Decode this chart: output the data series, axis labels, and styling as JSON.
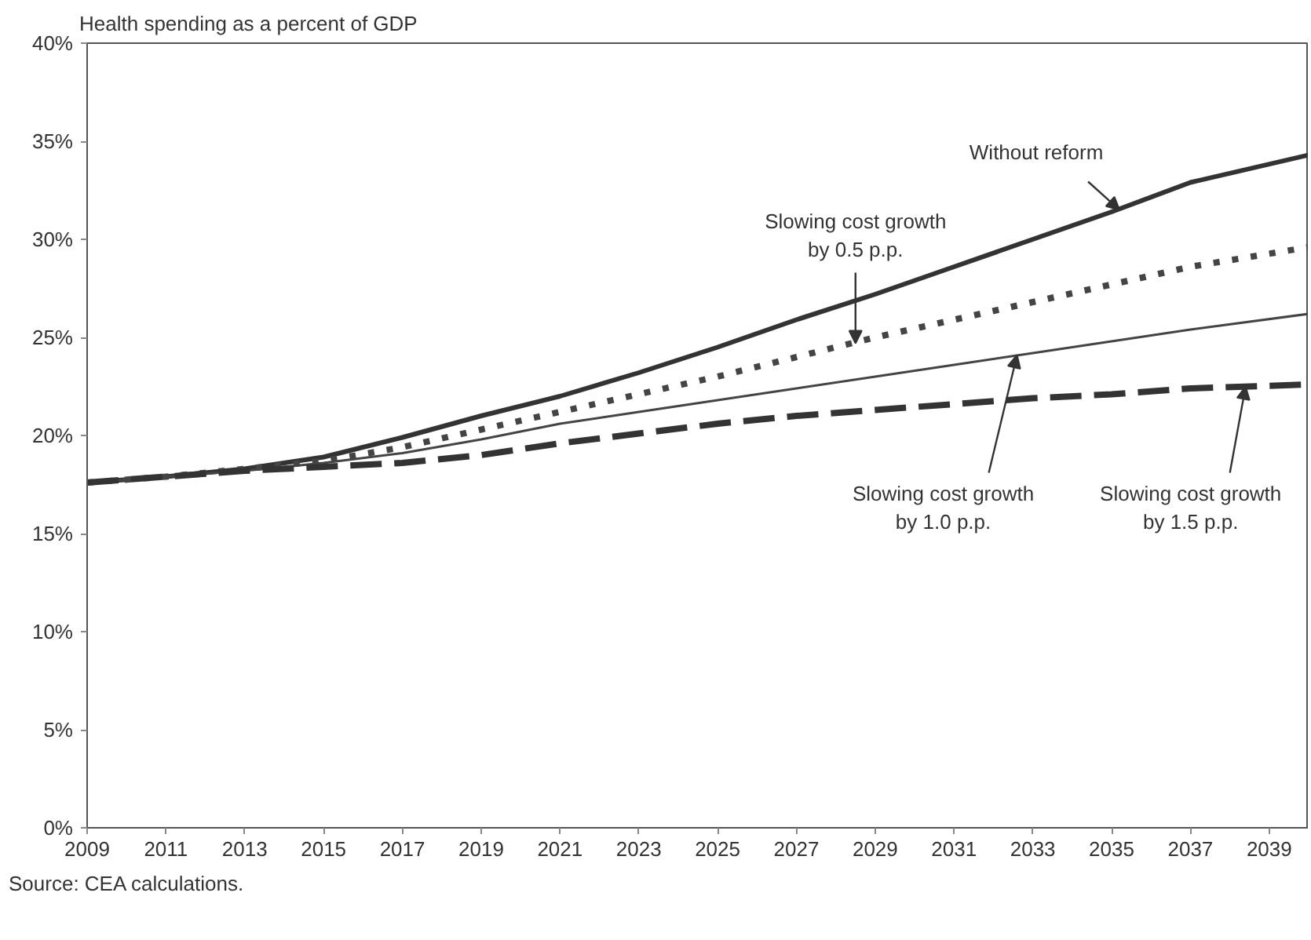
{
  "chart_data": {
    "type": "line",
    "ylabel": "Health spending as a percent of GDP",
    "x": [
      2009,
      2011,
      2013,
      2015,
      2017,
      2019,
      2021,
      2023,
      2025,
      2027,
      2029,
      2031,
      2033,
      2035,
      2037,
      2040
    ],
    "series": [
      {
        "color": "#333333",
        "line_style": "solid",
        "values": [
          17.6,
          17.9,
          18.3,
          18.9,
          19.9,
          21.0,
          22.0,
          23.2,
          24.5,
          25.9,
          27.2,
          28.6,
          30.0,
          31.4,
          32.9,
          34.3
        ]
      },
      {
        "color": "#444444",
        "line_style": "dotted",
        "values": [
          17.6,
          17.9,
          18.3,
          18.7,
          19.4,
          20.3,
          21.2,
          22.1,
          23.0,
          24.0,
          25.0,
          25.9,
          26.8,
          27.7,
          28.6,
          29.6
        ]
      },
      {
        "color": "#444444",
        "line_style": "solid",
        "values": [
          17.6,
          17.9,
          18.2,
          18.6,
          19.1,
          19.8,
          20.6,
          21.2,
          21.8,
          22.4,
          23.0,
          23.6,
          24.2,
          24.8,
          25.4,
          26.2
        ]
      },
      {
        "color": "#333333",
        "line_style": "dashed",
        "values": [
          17.6,
          17.9,
          18.2,
          18.4,
          18.6,
          19.0,
          19.6,
          20.1,
          20.6,
          21.0,
          21.3,
          21.6,
          21.9,
          22.1,
          22.4,
          22.6
        ]
      }
    ],
    "xlim": [
      2009,
      2040
    ],
    "ylim": [
      0,
      40
    ],
    "xticks": [
      2009,
      2011,
      2013,
      2015,
      2017,
      2019,
      2021,
      2023,
      2025,
      2027,
      2029,
      2031,
      2033,
      2035,
      2037,
      2039
    ],
    "yticks": [
      {
        "value": 0,
        "label": "0%"
      },
      {
        "value": 5,
        "label": "5%"
      },
      {
        "value": 10,
        "label": "10%"
      },
      {
        "value": 15,
        "label": "15%"
      },
      {
        "value": 20,
        "label": "20%"
      },
      {
        "value": 25,
        "label": "25%"
      },
      {
        "value": 30,
        "label": "30%"
      },
      {
        "value": 35,
        "label": "35%"
      },
      {
        "value": 40,
        "label": "40%"
      }
    ],
    "grid": false,
    "annotations": [
      {
        "text": "Without reform",
        "x": 2035.2,
        "y": 31.5
      },
      {
        "text": "Slowing cost growth\nby 0.5 p.p.",
        "x": 2028.5,
        "y": 24.7
      },
      {
        "text": "Slowing cost growth\nby 1.0 p.p.",
        "x": 2032.6,
        "y": 24.1
      },
      {
        "text": "Slowing cost growth\nby 1.5 p.p.",
        "x": 2038.4,
        "y": 22.5
      },
      "Source: CEA calculations."
    ]
  }
}
